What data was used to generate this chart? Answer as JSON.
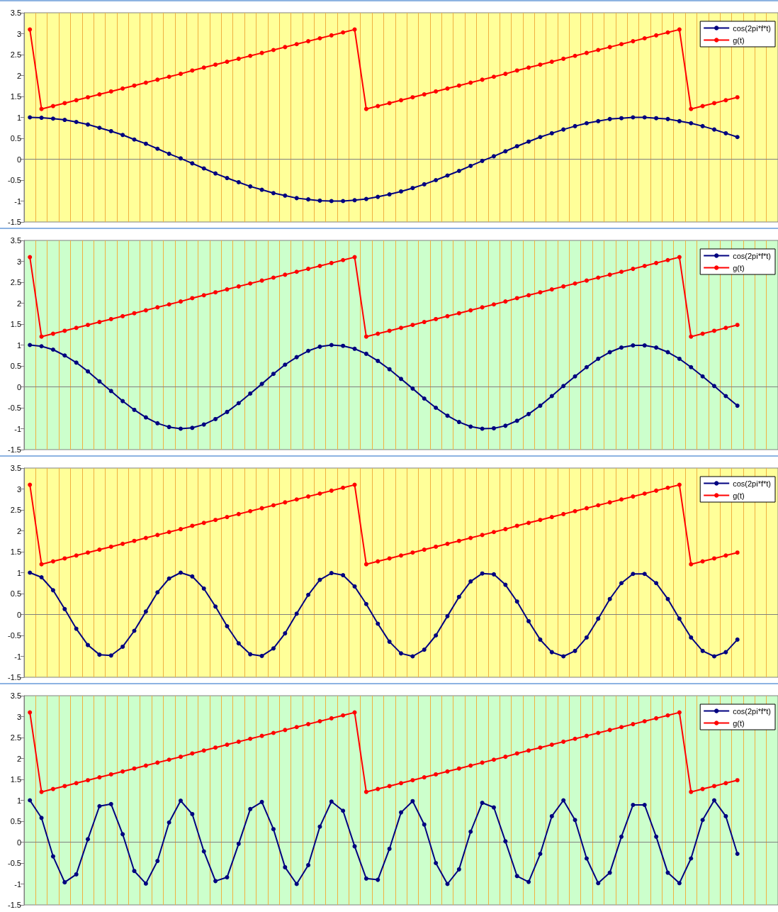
{
  "chart_data": [
    {
      "type": "line",
      "categories": [
        null,
        null,
        null,
        null,
        null,
        null,
        null,
        null,
        null,
        null,
        null,
        null,
        null,
        null,
        null,
        null,
        null,
        null,
        null,
        null,
        null,
        null,
        null,
        null,
        null,
        null,
        null,
        null,
        null,
        null,
        null,
        null,
        null,
        null,
        null,
        null,
        null,
        null,
        null,
        null,
        null,
        null,
        null,
        null,
        null,
        null,
        null,
        null,
        null,
        null,
        null,
        null,
        null,
        null,
        null,
        null,
        null,
        null,
        null,
        null,
        null,
        null,
        null,
        null,
        null
      ],
      "ylim": [
        -1.5,
        3.5
      ],
      "yticks": [
        -1.5,
        -1,
        -0.5,
        0,
        0.5,
        1,
        1.5,
        2,
        2.5,
        3,
        3.5
      ],
      "grid": "x",
      "legend": "top right",
      "marker": "circle",
      "tick_labels": "y",
      "series": [
        {
          "name": "cos(2pi*f*t)",
          "color": "#000080",
          "values": [
            1,
            0.99,
            0.97,
            0.94,
            0.89,
            0.83,
            0.75,
            0.67,
            0.58,
            0.47,
            0.37,
            0.25,
            0.13,
            0.02,
            -0.1,
            -0.22,
            -0.34,
            -0.45,
            -0.55,
            -0.65,
            -0.73,
            -0.81,
            -0.87,
            -0.93,
            -0.96,
            -0.99,
            -1.0,
            -1.0,
            -0.98,
            -0.95,
            -0.9,
            -0.84,
            -0.77,
            -0.69,
            -0.6,
            -0.5,
            -0.39,
            -0.28,
            -0.16,
            -0.04,
            0.07,
            0.19,
            0.31,
            0.42,
            0.53,
            0.62,
            0.71,
            0.79,
            0.86,
            0.91,
            0.96,
            0.98,
            1.0,
            1.0,
            0.98,
            0.96,
            0.91,
            0.86,
            0.79,
            0.71,
            0.62,
            0.53,
            null,
            null,
            null
          ]
        },
        {
          "name": "g(t)",
          "color": "#ff0000",
          "values": [
            3.1,
            1.2,
            1.27,
            1.34,
            1.41,
            1.48,
            1.55,
            1.62,
            1.69,
            1.76,
            1.83,
            1.9,
            1.97,
            2.04,
            2.12,
            2.19,
            2.26,
            2.33,
            2.4,
            2.47,
            2.54,
            2.61,
            2.68,
            2.75,
            2.82,
            2.89,
            2.96,
            3.03,
            3.1,
            1.2,
            1.27,
            1.34,
            1.41,
            1.48,
            1.55,
            1.62,
            1.69,
            1.76,
            1.83,
            1.9,
            1.97,
            2.04,
            2.12,
            2.19,
            2.26,
            2.33,
            2.4,
            2.47,
            2.54,
            2.61,
            2.68,
            2.75,
            2.82,
            2.89,
            2.96,
            3.03,
            3.1,
            1.2,
            1.27,
            1.34,
            1.41,
            1.48,
            null,
            null,
            null
          ]
        }
      ]
    },
    {
      "type": "line",
      "categories": [
        null,
        null,
        null,
        null,
        null,
        null,
        null,
        null,
        null,
        null,
        null,
        null,
        null,
        null,
        null,
        null,
        null,
        null,
        null,
        null,
        null,
        null,
        null,
        null,
        null,
        null,
        null,
        null,
        null,
        null,
        null,
        null,
        null,
        null,
        null,
        null,
        null,
        null,
        null,
        null,
        null,
        null,
        null,
        null,
        null,
        null,
        null,
        null,
        null,
        null,
        null,
        null,
        null,
        null,
        null,
        null,
        null,
        null,
        null,
        null,
        null,
        null,
        null,
        null,
        null
      ],
      "ylim": [
        -1.5,
        3.5
      ],
      "yticks": [
        -1.5,
        -1,
        -0.5,
        0,
        0.5,
        1,
        1.5,
        2,
        2.5,
        3,
        3.5
      ],
      "grid": "x",
      "legend": "top right",
      "marker": "circle",
      "tick_labels": "y",
      "series": [
        {
          "name": "cos(2pi*f*t)",
          "color": "#000080",
          "values": [
            1,
            0.97,
            0.89,
            0.75,
            0.58,
            0.37,
            0.13,
            -0.1,
            -0.34,
            -0.55,
            -0.73,
            -0.87,
            -0.96,
            -1.0,
            -0.98,
            -0.9,
            -0.77,
            -0.6,
            -0.39,
            -0.16,
            0.07,
            0.31,
            0.53,
            0.71,
            0.86,
            0.96,
            1.0,
            0.98,
            0.91,
            0.79,
            0.62,
            0.42,
            0.19,
            -0.04,
            -0.28,
            -0.5,
            -0.69,
            -0.84,
            -0.95,
            -1.0,
            -0.99,
            -0.93,
            -0.81,
            -0.65,
            -0.45,
            -0.22,
            0.02,
            0.25,
            0.47,
            0.67,
            0.83,
            0.94,
            0.99,
            0.99,
            0.94,
            0.83,
            0.67,
            0.47,
            0.25,
            0.02,
            -0.22,
            -0.45,
            null,
            null,
            null
          ]
        },
        {
          "name": "g(t)",
          "color": "#ff0000",
          "values": [
            3.1,
            1.2,
            1.27,
            1.34,
            1.41,
            1.48,
            1.55,
            1.62,
            1.69,
            1.76,
            1.83,
            1.9,
            1.97,
            2.04,
            2.12,
            2.19,
            2.26,
            2.33,
            2.4,
            2.47,
            2.54,
            2.61,
            2.68,
            2.75,
            2.82,
            2.89,
            2.96,
            3.03,
            3.1,
            1.2,
            1.27,
            1.34,
            1.41,
            1.48,
            1.55,
            1.62,
            1.69,
            1.76,
            1.83,
            1.9,
            1.97,
            2.04,
            2.12,
            2.19,
            2.26,
            2.33,
            2.4,
            2.47,
            2.54,
            2.61,
            2.68,
            2.75,
            2.82,
            2.89,
            2.96,
            3.03,
            3.1,
            1.2,
            1.27,
            1.34,
            1.41,
            1.48,
            null,
            null,
            null
          ]
        }
      ]
    },
    {
      "type": "line",
      "categories": [
        null,
        null,
        null,
        null,
        null,
        null,
        null,
        null,
        null,
        null,
        null,
        null,
        null,
        null,
        null,
        null,
        null,
        null,
        null,
        null,
        null,
        null,
        null,
        null,
        null,
        null,
        null,
        null,
        null,
        null,
        null,
        null,
        null,
        null,
        null,
        null,
        null,
        null,
        null,
        null,
        null,
        null,
        null,
        null,
        null,
        null,
        null,
        null,
        null,
        null,
        null,
        null,
        null,
        null,
        null,
        null,
        null,
        null,
        null,
        null,
        null,
        null,
        null,
        null,
        null
      ],
      "ylim": [
        -1.5,
        3.5
      ],
      "yticks": [
        -1.5,
        -1,
        -0.5,
        0,
        0.5,
        1,
        1.5,
        2,
        2.5,
        3,
        3.5
      ],
      "grid": "x",
      "legend": "top right",
      "marker": "circle",
      "tick_labels": "y",
      "series": [
        {
          "name": "cos(2pi*f*t)",
          "color": "#000080",
          "values": [
            1,
            0.89,
            0.58,
            0.13,
            -0.34,
            -0.73,
            -0.96,
            -0.98,
            -0.77,
            -0.39,
            0.07,
            0.53,
            0.86,
            1.0,
            0.91,
            0.62,
            0.19,
            -0.28,
            -0.69,
            -0.95,
            -0.99,
            -0.81,
            -0.45,
            0.02,
            0.47,
            0.83,
            0.99,
            0.94,
            0.67,
            0.25,
            -0.22,
            -0.65,
            -0.93,
            -1.0,
            -0.84,
            -0.5,
            -0.04,
            0.42,
            0.79,
            0.98,
            0.96,
            0.71,
            0.31,
            -0.16,
            -0.6,
            -0.9,
            -1.0,
            -0.87,
            -0.55,
            -0.1,
            0.37,
            0.75,
            0.97,
            0.97,
            0.75,
            0.37,
            -0.1,
            -0.55,
            -0.87,
            -1.0,
            -0.9,
            -0.6,
            null,
            null,
            null
          ]
        },
        {
          "name": "g(t)",
          "color": "#ff0000",
          "values": [
            3.1,
            1.2,
            1.27,
            1.34,
            1.41,
            1.48,
            1.55,
            1.62,
            1.69,
            1.76,
            1.83,
            1.9,
            1.97,
            2.04,
            2.12,
            2.19,
            2.26,
            2.33,
            2.4,
            2.47,
            2.54,
            2.61,
            2.68,
            2.75,
            2.82,
            2.89,
            2.96,
            3.03,
            3.1,
            1.2,
            1.27,
            1.34,
            1.41,
            1.48,
            1.55,
            1.62,
            1.69,
            1.76,
            1.83,
            1.9,
            1.97,
            2.04,
            2.12,
            2.19,
            2.26,
            2.33,
            2.4,
            2.47,
            2.54,
            2.61,
            2.68,
            2.75,
            2.82,
            2.89,
            2.96,
            3.03,
            3.1,
            1.2,
            1.27,
            1.34,
            1.41,
            1.48,
            null,
            null,
            null
          ]
        }
      ]
    },
    {
      "type": "line",
      "categories": [
        null,
        null,
        null,
        null,
        null,
        null,
        null,
        null,
        null,
        null,
        null,
        null,
        null,
        null,
        null,
        null,
        null,
        null,
        null,
        null,
        null,
        null,
        null,
        null,
        null,
        null,
        null,
        null,
        null,
        null,
        null,
        null,
        null,
        null,
        null,
        null,
        null,
        null,
        null,
        null,
        null,
        null,
        null,
        null,
        null,
        null,
        null,
        null,
        null,
        null,
        null,
        null,
        null,
        null,
        null,
        null,
        null,
        null,
        null,
        null,
        null,
        null,
        null,
        null,
        null
      ],
      "ylim": [
        -1.5,
        3.5
      ],
      "yticks": [
        -1.5,
        -1,
        -0.5,
        0,
        0.5,
        1,
        1.5,
        2,
        2.5,
        3,
        3.5
      ],
      "grid": "x",
      "legend": "top right",
      "marker": "circle",
      "tick_labels": "y",
      "series": [
        {
          "name": "cos(2pi*f*t)",
          "color": "#000080",
          "values": [
            1,
            0.58,
            -0.34,
            -0.96,
            -0.77,
            0.07,
            0.86,
            0.91,
            0.19,
            -0.69,
            -0.99,
            -0.45,
            0.47,
            0.99,
            0.67,
            -0.22,
            -0.93,
            -0.84,
            -0.04,
            0.79,
            0.96,
            0.31,
            -0.6,
            -1.0,
            -0.55,
            0.37,
            0.97,
            0.75,
            -0.1,
            -0.87,
            -0.9,
            -0.16,
            0.71,
            0.98,
            0.42,
            -0.5,
            -1.0,
            -0.65,
            0.25,
            0.94,
            0.83,
            0.02,
            -0.81,
            -0.95,
            -0.28,
            0.62,
            1.0,
            0.53,
            -0.39,
            -0.98,
            -0.73,
            0.13,
            0.89,
            0.89,
            0.13,
            -0.73,
            -0.98,
            -0.39,
            0.53,
            1.0,
            0.62,
            -0.28,
            null,
            null,
            null
          ]
        },
        {
          "name": "g(t)",
          "color": "#ff0000",
          "values": [
            3.1,
            1.2,
            1.27,
            1.34,
            1.41,
            1.48,
            1.55,
            1.62,
            1.69,
            1.76,
            1.83,
            1.9,
            1.97,
            2.04,
            2.12,
            2.19,
            2.26,
            2.33,
            2.4,
            2.47,
            2.54,
            2.61,
            2.68,
            2.75,
            2.82,
            2.89,
            2.96,
            3.03,
            3.1,
            1.2,
            1.27,
            1.34,
            1.41,
            1.48,
            1.55,
            1.62,
            1.69,
            1.76,
            1.83,
            1.9,
            1.97,
            2.04,
            2.12,
            2.19,
            2.26,
            2.33,
            2.4,
            2.47,
            2.54,
            2.61,
            2.68,
            2.75,
            2.82,
            2.89,
            2.96,
            3.03,
            3.1,
            1.2,
            1.27,
            1.34,
            1.41,
            1.48,
            null,
            null,
            null
          ]
        }
      ]
    }
  ]
}
